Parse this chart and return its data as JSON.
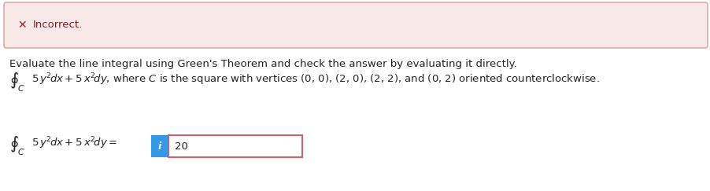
{
  "bg_color": "#ffffff",
  "error_box_bg": "#f9e8e8",
  "error_box_border": "#d0a0a0",
  "error_icon_color": "#a02020",
  "error_text": "Incorrect.",
  "error_text_color": "#7a2020",
  "body_text_line1": "Evaluate the line integral using Green's Theorem and check the answer by evaluating it directly.",
  "body_text_color": "#222222",
  "answer_value": "20",
  "info_box_bg": "#3399e6",
  "info_box_text": "i",
  "answer_box_border": "#d06070",
  "font_size_body": 9.5,
  "font_size_error": 9.5,
  "font_size_integral": 11
}
